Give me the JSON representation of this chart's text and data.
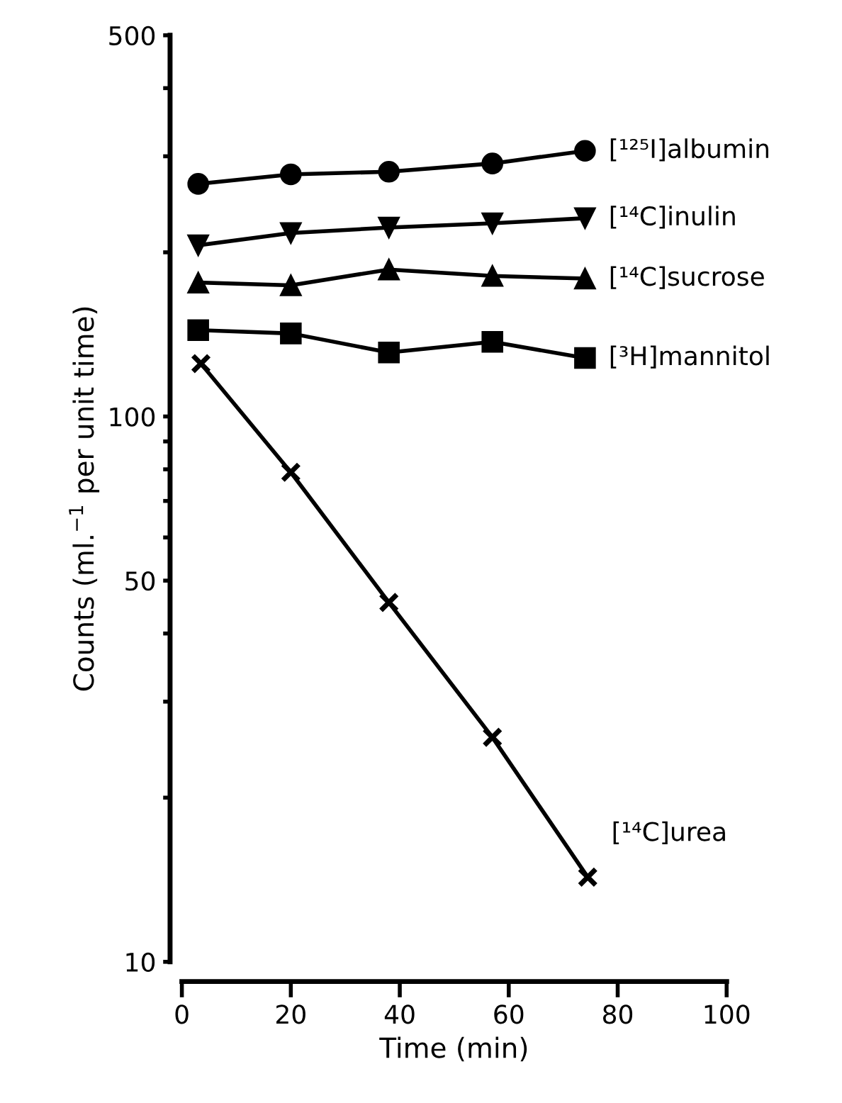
{
  "chart_data": {
    "type": "line",
    "xlabel": "Time (min)",
    "ylabel": "Counts (ml.$^{−1}$ per unit time)",
    "log": "y",
    "xlim": [
      0,
      100
    ],
    "xticks": [
      0,
      20,
      40,
      60,
      80,
      100
    ],
    "ylim": [
      10,
      500
    ],
    "yticks": [
      10,
      {
        "value": 20,
        "label": null
      },
      {
        "value": 30,
        "label": null
      },
      {
        "value": 40,
        "label": null
      },
      50,
      {
        "value": 60,
        "label": null
      },
      {
        "value": 70,
        "label": null
      },
      {
        "value": 80,
        "label": null
      },
      {
        "value": 90,
        "label": null
      },
      100,
      {
        "value": 200,
        "label": null
      },
      {
        "value": 300,
        "label": null
      },
      {
        "value": 400,
        "label": null
      },
      500
    ],
    "grid": false,
    "legend": false,
    "line_style": "solid",
    "series": [
      {
        "name": "[¹²⁵I]albumin",
        "color": "#000000",
        "marker": "circle",
        "x": [
          3,
          20,
          38,
          57,
          74
        ],
        "values": [
          267,
          278,
          281,
          291,
          307
        ]
      },
      {
        "name": "[¹⁴C]inulin",
        "color": "#000000",
        "marker": "triangle_down",
        "x": [
          3,
          20,
          38,
          57,
          74
        ],
        "values": [
          206,
          217,
          222,
          226,
          231
        ]
      },
      {
        "name": "[¹⁴C]sucrose",
        "color": "#000000",
        "marker": "triangle",
        "x": [
          3,
          20,
          38,
          57,
          74
        ],
        "values": [
          176,
          174,
          186,
          181,
          179
        ]
      },
      {
        "name": "[³H]mannitol",
        "color": "#000000",
        "marker": "square",
        "x": [
          3,
          20,
          38,
          57,
          74
        ],
        "values": [
          144,
          142,
          131,
          137,
          128
        ]
      },
      {
        "name": "[¹⁴C]urea",
        "color": "#000000",
        "marker": "cross",
        "x": [
          3.5,
          20,
          38,
          57,
          74.5
        ],
        "values": [
          125,
          79,
          45.6,
          25.8,
          14.3
        ]
      }
    ]
  }
}
